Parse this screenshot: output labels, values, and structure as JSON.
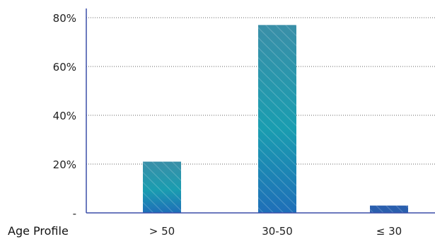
{
  "chart_data": {
    "type": "bar",
    "xlabel": "Age Profile",
    "ylabel": "",
    "categories": [
      "> 50",
      "30-50",
      "≤ 30"
    ],
    "values": [
      21,
      77,
      3
    ],
    "ylim": [
      0,
      80
    ],
    "yticks": [
      {
        "value": 0,
        "label": "-"
      },
      {
        "value": 20,
        "label": "20%"
      },
      {
        "value": 40,
        "label": "40%"
      },
      {
        "value": 60,
        "label": "60%"
      },
      {
        "value": 80,
        "label": "80%"
      }
    ],
    "grid": true,
    "legend": "none",
    "colors": {
      "bar_top": "#3a8fa8",
      "bar_mid": "#1a9db0",
      "bar_bottom": "#1f6fb8",
      "bar_small": "#2a5fae",
      "axis": "#3b4fa8",
      "grid": "#666666"
    }
  }
}
